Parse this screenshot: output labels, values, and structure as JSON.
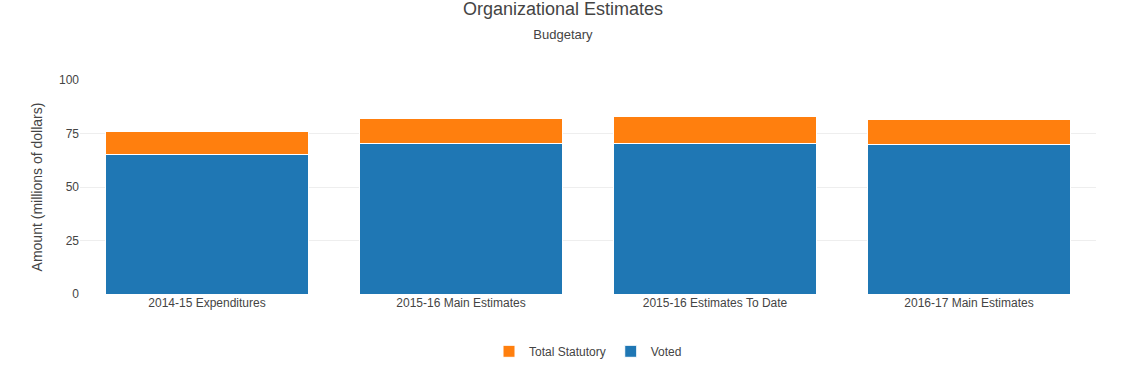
{
  "chart_data": {
    "type": "bar",
    "stacked": true,
    "title": "Organizational Estimates",
    "subtitle": "Budgetary",
    "ylabel": "Amount (millions of dollars)",
    "categories": [
      "2014-15 Expenditures",
      "2015-16 Main Estimates",
      "2015-16 Estimates To Date",
      "2016-17 Main Estimates"
    ],
    "series": [
      {
        "name": "Voted",
        "values": [
          65.0,
          70.5,
          70.5,
          70.0
        ]
      },
      {
        "name": "Total Statutory",
        "values": [
          11.0,
          11.5,
          12.5,
          11.5
        ]
      }
    ],
    "ylim": [
      0,
      100
    ],
    "yticks": [
      0,
      25,
      50,
      75,
      100
    ],
    "grid": true,
    "legend": "bottom"
  }
}
